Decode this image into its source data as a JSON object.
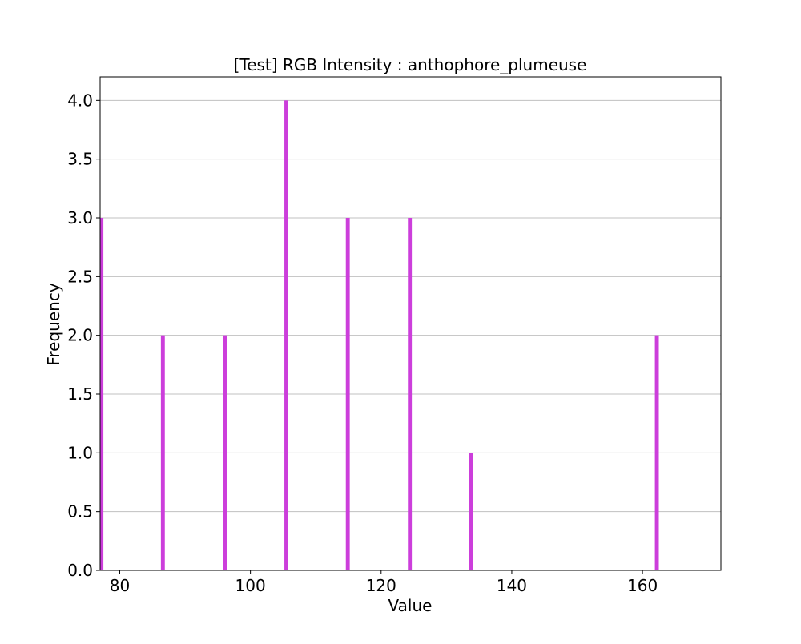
{
  "chart_data": {
    "type": "bar",
    "title": "[Test] RGB Intensity : anthophore_plumeuse",
    "xlabel": "Value",
    "ylabel": "Frequency",
    "xlim": [
      77,
      172
    ],
    "ylim": [
      0,
      4.2
    ],
    "xticks": [
      80,
      100,
      120,
      140,
      160
    ],
    "xtick_labels": [
      "80",
      "100",
      "120",
      "140",
      "160"
    ],
    "yticks": [
      0,
      0.5,
      1,
      1.5,
      2,
      2.5,
      3,
      3.5,
      4
    ],
    "ytick_labels": [
      "0.0",
      "0.5",
      "1.0",
      "1.5",
      "2.0",
      "2.5",
      "3.0",
      "3.5",
      "4.0"
    ],
    "bar_width": 0.6,
    "grid": "y-major",
    "bar_color": "#cc3edb",
    "grid_color": "#c0c0c0",
    "x": [
      77.2,
      86.6,
      96.1,
      105.5,
      114.9,
      124.4,
      133.8,
      162.2
    ],
    "values": [
      3,
      2,
      2,
      4,
      3,
      3,
      1,
      2
    ]
  }
}
